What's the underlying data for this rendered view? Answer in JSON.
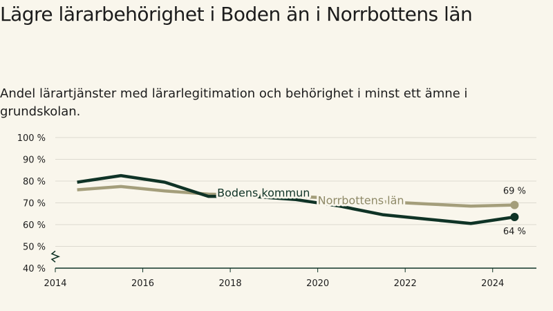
{
  "title": "Lägre lärarbehörighet i Boden än i Norrbottens län",
  "subtitle": "Andel lärartjänster med lärarlegitimation och behörighet i minst ett ämne i grundskolan.",
  "colors": {
    "background": "#f9f6ec",
    "boden": "#0f3326",
    "norrbotten": "#a49e7b",
    "grid": "#dddad0",
    "axis": "#0f3326"
  },
  "chart_data": {
    "type": "line",
    "title": "Lägre lärarbehörighet i Boden än i Norrbottens län",
    "subtitle": "Andel lärartjänster med lärarlegitimation och behörighet i minst ett ämne i grundskolan.",
    "xlabel": "",
    "ylabel": "",
    "xlim": [
      2014,
      2025
    ],
    "ylim": [
      40,
      100
    ],
    "y_break": true,
    "grid": true,
    "legend": "inline labels",
    "x_ticks": [
      {
        "value": 2014,
        "label": "2014"
      },
      {
        "value": 2016,
        "label": "2016"
      },
      {
        "value": 2018,
        "label": "2018"
      },
      {
        "value": 2020,
        "label": "2020"
      },
      {
        "value": 2022,
        "label": "2022"
      },
      {
        "value": 2024,
        "label": "2024"
      }
    ],
    "y_ticks": [
      {
        "value": 40,
        "label": "40 %"
      },
      {
        "value": 50,
        "label": "50 %"
      },
      {
        "value": 60,
        "label": "60 %"
      },
      {
        "value": 70,
        "label": "70 %"
      },
      {
        "value": 80,
        "label": "80 %"
      },
      {
        "value": 90,
        "label": "90 %"
      },
      {
        "value": 100,
        "label": "100 %"
      }
    ],
    "series": [
      {
        "name": "Norrbottens län",
        "color": "#a49e7b",
        "x": [
          2014.5,
          2015.5,
          2016.5,
          2017.5,
          2018.5,
          2019.5,
          2020.5,
          2021.5,
          2022.5,
          2023.5,
          2024.5
        ],
        "y": [
          76,
          77.5,
          75.5,
          74,
          73.5,
          73,
          72,
          70.5,
          69.5,
          68.5,
          69
        ],
        "end_label": "69 %"
      },
      {
        "name": "Bodens kommun",
        "color": "#0f3326",
        "x": [
          2014.5,
          2015.5,
          2016.5,
          2017.5,
          2018.5,
          2019.5,
          2020.5,
          2021.5,
          2022.5,
          2023.5,
          2024.5
        ],
        "y": [
          79.5,
          82.5,
          79.5,
          73,
          73,
          71.5,
          68.5,
          64.5,
          62.5,
          60.5,
          63.5
        ],
        "end_label": "64 %"
      }
    ]
  }
}
